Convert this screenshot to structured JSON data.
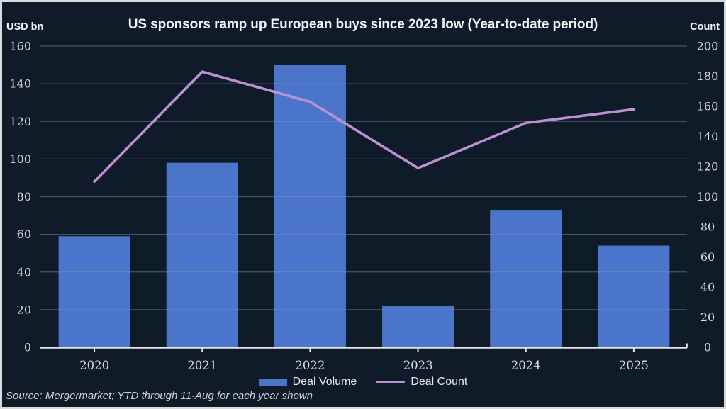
{
  "source": "Source: Mergermarket; YTD through 11-Aug for each year shown",
  "colors": {
    "background": "#101b29",
    "border": "#d9d9d9",
    "bar": "#4a75ca",
    "line": "#bc92d4",
    "gridline": "rgba(125,146,166,0.5)",
    "axis": "#e5e8ea",
    "tick_text": "#d9dee4",
    "title_text": "#f2f4f6"
  },
  "chart_data": {
    "type": "bar+line combo",
    "title": "US sponsors ramp up European buys since 2023 low (Year-to-date period)",
    "categories": [
      "2020",
      "2021",
      "2022",
      "2023",
      "2024",
      "2025"
    ],
    "series": [
      {
        "name": "Deal Volume",
        "type": "bar",
        "axis": "left",
        "color": "#4a75ca",
        "values": [
          59,
          98,
          150,
          22,
          73,
          54
        ]
      },
      {
        "name": "Deal Count",
        "type": "line",
        "axis": "right",
        "color": "#bc92d4",
        "values": [
          110,
          183,
          163,
          119,
          149,
          158
        ]
      }
    ],
    "left_axis": {
      "title": "USD bn",
      "min": 0,
      "max": 160,
      "ticks": [
        0,
        20,
        40,
        60,
        80,
        100,
        120,
        140,
        160
      ]
    },
    "right_axis": {
      "title": "Count",
      "min": 0,
      "max": 200,
      "ticks": [
        0,
        20,
        40,
        60,
        80,
        100,
        120,
        140,
        160,
        180,
        200
      ]
    },
    "grid": "horizontal gridlines at left-axis ticks",
    "legend_position": "bottom-center"
  },
  "legend": {
    "items": [
      {
        "label": "Deal Volume",
        "swatch": "bar"
      },
      {
        "label": "Deal Count",
        "swatch": "line"
      }
    ]
  }
}
